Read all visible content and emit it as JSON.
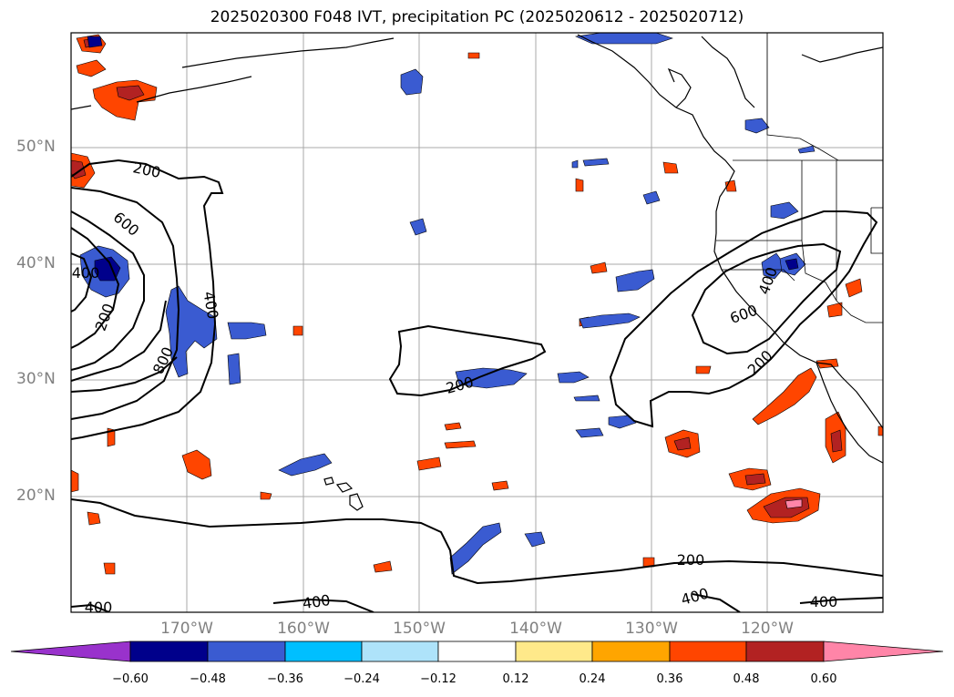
{
  "title": "2025020300 F048 IVT, precipitation PC (2025020612 - 2025020712)",
  "lat_labels": [
    "50°N",
    "40°N",
    "30°N",
    "20°N"
  ],
  "lon_labels": [
    "170°W",
    "160°W",
    "150°W",
    "140°W",
    "130°W",
    "120°W"
  ],
  "ivt_contour_labels": [
    "200",
    "600",
    "400",
    "200",
    "400",
    "800",
    "200",
    "600",
    "400",
    "200",
    "200",
    "400",
    "400",
    "400",
    "400"
  ],
  "colorbar": {
    "ticks": [
      "−0.60",
      "−0.48",
      "−0.36",
      "−0.24",
      "−0.12",
      "0.12",
      "0.24",
      "0.36",
      "0.48",
      "0.60"
    ],
    "colors": [
      "#9932cc",
      "#00008b",
      "#3a5bd1",
      "#00bfff",
      "#aee3fa",
      "#ffffff",
      "#ffe98a",
      "#ffa500",
      "#ff4500",
      "#b22222",
      "#ff85a8"
    ]
  },
  "colors": {
    "coast": "#000000",
    "grid": "#a9a9a9",
    "ivt_contour": "#000000"
  }
}
